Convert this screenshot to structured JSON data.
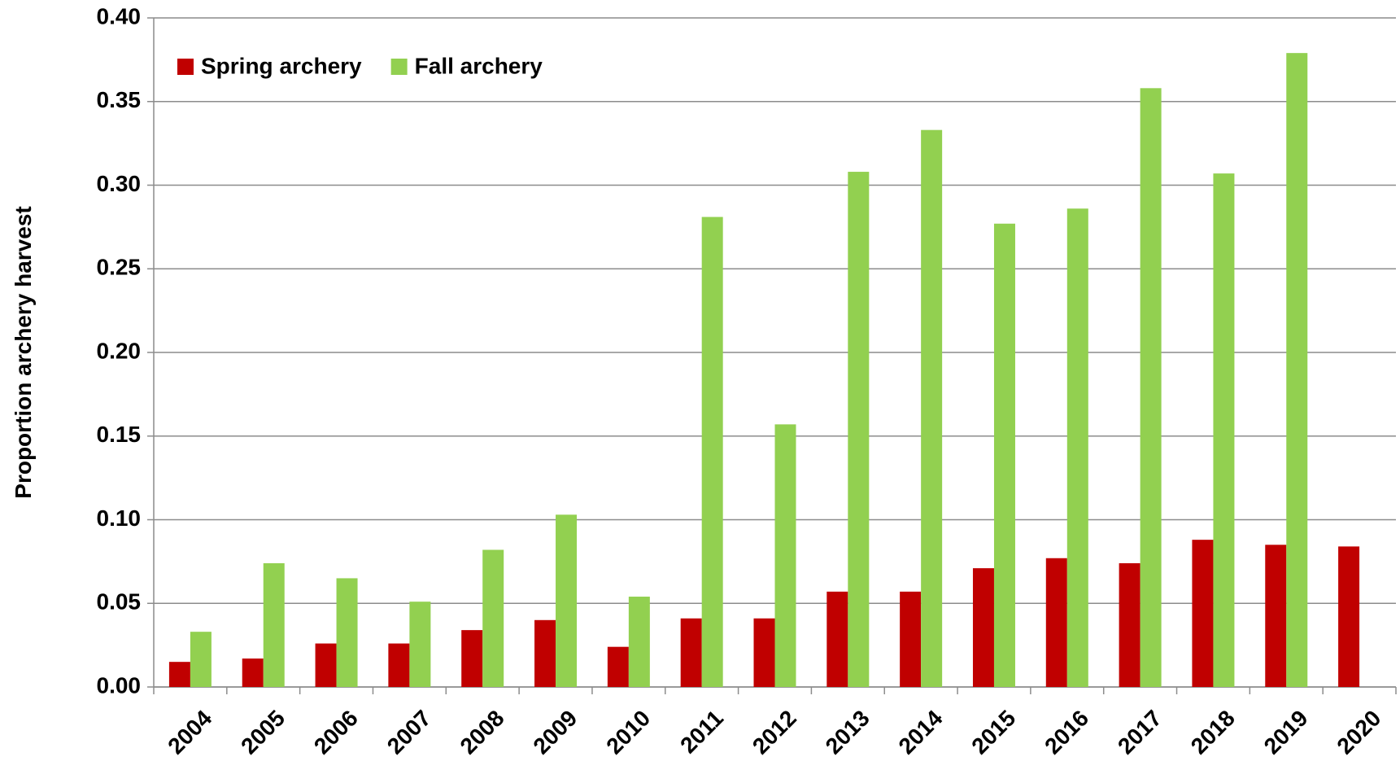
{
  "chart_data": {
    "type": "bar",
    "y_label": "Proportion archery harvest",
    "categories": [
      "2004",
      "2005",
      "2006",
      "2007",
      "2008",
      "2009",
      "2010",
      "2011",
      "2012",
      "2013",
      "2014",
      "2015",
      "2016",
      "2017",
      "2018",
      "2019",
      "2020"
    ],
    "series": [
      {
        "name": "Spring archery",
        "color": "#c00000",
        "values": [
          0.015,
          0.017,
          0.026,
          0.026,
          0.034,
          0.04,
          0.024,
          0.041,
          0.041,
          0.057,
          0.057,
          0.071,
          0.077,
          0.074,
          0.088,
          0.085,
          0.084
        ]
      },
      {
        "name": "Fall archery",
        "color": "#92d050",
        "values": [
          0.033,
          0.074,
          0.065,
          0.051,
          0.082,
          0.103,
          0.054,
          0.281,
          0.157,
          0.308,
          0.333,
          0.277,
          0.286,
          0.358,
          0.307,
          0.379,
          null
        ]
      }
    ],
    "ylim": [
      0,
      0.4
    ],
    "yticks": [
      {
        "value": 0,
        "label": "0.00"
      },
      0.05,
      {
        "value": 0.1,
        "label": "0.10"
      },
      0.15,
      {
        "value": 0.2,
        "label": "0.20"
      },
      0.25,
      {
        "value": 0.3,
        "label": "0.30"
      },
      0.35,
      {
        "value": 0.4,
        "label": "0.40"
      }
    ],
    "grid": true,
    "legend": "top-left"
  }
}
